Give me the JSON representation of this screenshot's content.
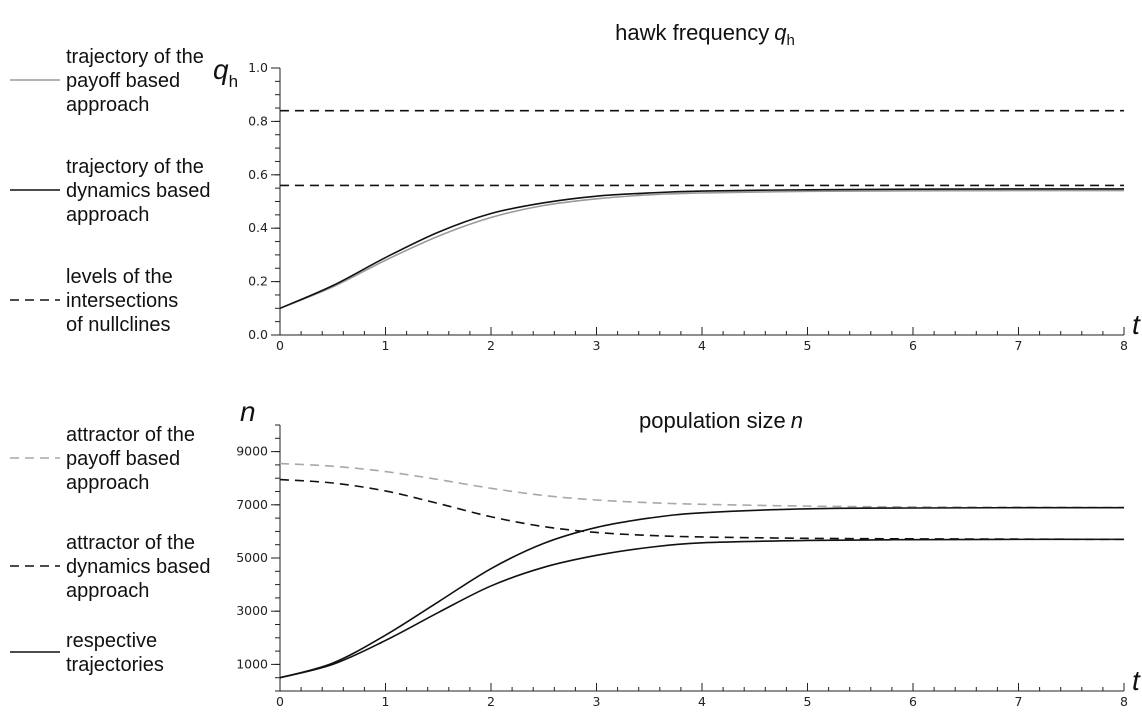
{
  "chart_data": [
    {
      "type": "line",
      "title": "hawk frequency",
      "title_var": "q",
      "title_sub": "h",
      "ylabel": "q",
      "ylabel_sub": "h",
      "xlabel": "t",
      "xlim": [
        0,
        8
      ],
      "ylim": [
        0,
        1
      ],
      "x_ticks": [
        "0",
        "1",
        "2",
        "3",
        "4",
        "5",
        "6",
        "7",
        "8"
      ],
      "y_tick_values": [
        0,
        0.2,
        0.4,
        0.6,
        0.8,
        1.0
      ],
      "y_tick_labels": [
        "0.0",
        "0.2",
        "0.4",
        "0.6",
        "0.8",
        "1.0"
      ],
      "y_minor_step": 0.05,
      "x_minor_step": 0.2,
      "grid": false,
      "series": [
        {
          "key": "payoff",
          "color": "#9a9a9a",
          "dash": "solid",
          "x": [
            0,
            0.5,
            1,
            1.5,
            2,
            2.5,
            3,
            3.5,
            4,
            5,
            6,
            7,
            8
          ],
          "y": [
            0.1,
            0.18,
            0.28,
            0.37,
            0.44,
            0.485,
            0.51,
            0.525,
            0.532,
            0.538,
            0.54,
            0.541,
            0.541
          ]
        },
        {
          "key": "dynamics",
          "color": "#111111",
          "dash": "solid",
          "x": [
            0,
            0.5,
            1,
            1.5,
            2,
            2.5,
            3,
            3.5,
            4,
            5,
            6,
            7,
            8
          ],
          "y": [
            0.1,
            0.185,
            0.29,
            0.385,
            0.455,
            0.495,
            0.52,
            0.532,
            0.539,
            0.544,
            0.546,
            0.547,
            0.547
          ]
        },
        {
          "key": "level-high",
          "color": "#111111",
          "dash": "dashed",
          "x": [
            0,
            8
          ],
          "y": [
            0.84,
            0.84
          ]
        },
        {
          "key": "level-low",
          "color": "#111111",
          "dash": "dashed",
          "x": [
            0,
            8
          ],
          "y": [
            0.56,
            0.56
          ]
        }
      ],
      "legend": [
        {
          "style": "solid",
          "color": "#9a9a9a",
          "lines": [
            "trajectory of the",
            "payoff based",
            "approach"
          ]
        },
        {
          "style": "solid",
          "color": "#111111",
          "lines": [
            "trajectory of the",
            "dynamics based",
            "approach"
          ]
        },
        {
          "style": "dashed",
          "color": "#111111",
          "lines": [
            "levels of the",
            "intersections",
            "of nullclines"
          ]
        }
      ]
    },
    {
      "type": "line",
      "title": "population size",
      "title_var": "n",
      "ylabel": "n",
      "xlabel": "t",
      "xlim": [
        0,
        8
      ],
      "ylim": [
        0,
        10000
      ],
      "x_ticks": [
        "0",
        "1",
        "2",
        "3",
        "4",
        "5",
        "6",
        "7",
        "8"
      ],
      "y_tick_values": [
        1000,
        3000,
        5000,
        7000,
        9000
      ],
      "y_tick_labels": [
        "1000",
        "3000",
        "5000",
        "7000",
        "9000"
      ],
      "y_minor_step": 500,
      "x_minor_step": 0.2,
      "grid": false,
      "series": [
        {
          "key": "attractor-payoff",
          "color": "#a8a8a8",
          "dash": "dashed",
          "x": [
            0,
            0.5,
            1,
            1.5,
            2,
            2.5,
            3,
            3.5,
            4,
            5,
            6,
            7,
            8
          ],
          "y": [
            8550,
            8450,
            8250,
            7950,
            7620,
            7350,
            7180,
            7080,
            7020,
            6950,
            6920,
            6910,
            6900
          ]
        },
        {
          "key": "attractor-dynamics",
          "color": "#111111",
          "dash": "dashed",
          "x": [
            0,
            0.5,
            1,
            1.5,
            2,
            2.5,
            3,
            3.5,
            4,
            5,
            6,
            7,
            8
          ],
          "y": [
            7950,
            7820,
            7520,
            7050,
            6550,
            6180,
            5960,
            5850,
            5790,
            5740,
            5720,
            5710,
            5700
          ]
        },
        {
          "key": "trajectory-upper",
          "color": "#111111",
          "dash": "solid",
          "x": [
            0,
            0.5,
            1,
            1.5,
            2,
            2.5,
            3,
            3.5,
            4,
            5,
            6,
            7,
            8
          ],
          "y": [
            500,
            1050,
            2100,
            3350,
            4600,
            5550,
            6150,
            6500,
            6700,
            6850,
            6880,
            6890,
            6890
          ]
        },
        {
          "key": "trajectory-lower",
          "color": "#111111",
          "dash": "solid",
          "x": [
            0,
            0.5,
            1,
            1.5,
            2,
            2.5,
            3,
            3.5,
            4,
            5,
            6,
            7,
            8
          ],
          "y": [
            500,
            1000,
            1900,
            2950,
            3950,
            4650,
            5100,
            5400,
            5570,
            5660,
            5690,
            5700,
            5700
          ]
        }
      ],
      "legend": [
        {
          "style": "dashed",
          "color": "#a8a8a8",
          "lines": [
            "attractor of the",
            "payoff based",
            "approach"
          ]
        },
        {
          "style": "dashed",
          "color": "#111111",
          "lines": [
            "attractor of the",
            "dynamics based",
            "approach"
          ]
        },
        {
          "style": "solid",
          "color": "#111111",
          "lines": [
            "respective",
            "trajectories"
          ]
        }
      ]
    }
  ]
}
